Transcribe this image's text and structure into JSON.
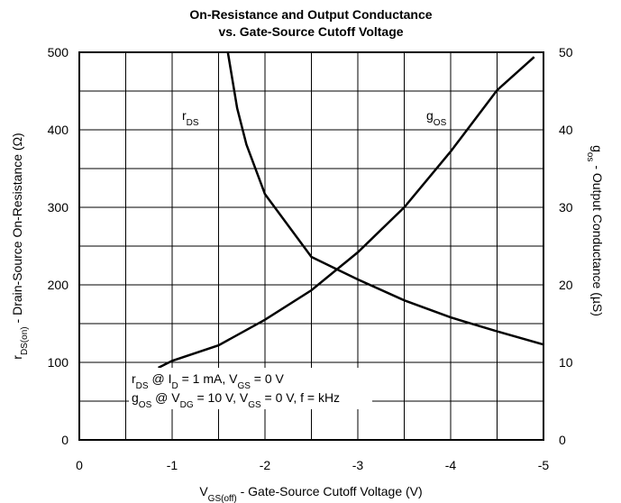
{
  "chart_data": {
    "type": "line",
    "title": [
      "On-Resistance and Output Conductance",
      "vs. Gate-Source Cutoff Voltage"
    ],
    "x_label": [
      "V",
      "GS(off)",
      " - Gate-Source Cutoff Voltage (V)"
    ],
    "y_label": [
      "r",
      "DS(on)",
      " - Drain-Source On-Resistance (Ω)"
    ],
    "y2_label": [
      "g",
      "os",
      " - Output Conductance (µS)"
    ],
    "xlim": [
      0,
      -5
    ],
    "xticks": [
      0,
      -1,
      -2,
      -3,
      -4,
      -5
    ],
    "ylim": [
      0,
      500
    ],
    "yticks": [
      0,
      100,
      200,
      300,
      400,
      500
    ],
    "y2lim": [
      0,
      50
    ],
    "y2ticks": [
      0,
      10,
      20,
      30,
      40,
      50
    ],
    "grid": true,
    "minor_grid": true,
    "series": [
      {
        "name": [
          "r",
          "DS"
        ],
        "color": "#000000",
        "axis": "y",
        "x": [
          -1.6,
          -1.7,
          -1.8,
          -2.0,
          -2.5,
          -3.0,
          -3.5,
          -4.0,
          -4.5,
          -5.0
        ],
        "values": [
          500,
          428,
          381,
          317,
          236,
          207,
          180,
          158,
          140,
          123
        ]
      },
      {
        "name": [
          "g",
          "OS"
        ],
        "color": "#000000",
        "axis": "y2",
        "x": [
          -0.85,
          -1.0,
          -1.5,
          -2.0,
          -2.5,
          -3.0,
          -3.5,
          -4.0,
          -4.5,
          -4.9
        ],
        "values": [
          9.3,
          10.2,
          12.2,
          15.5,
          19.3,
          24.2,
          30.0,
          37.2,
          45.1,
          49.4
        ]
      }
    ],
    "annotations": [
      [
        "r",
        "DS",
        " @ I",
        "D",
        " = 1 mA, V",
        "GS",
        " = 0 V"
      ],
      [
        "g",
        "OS",
        " @ V",
        "DG",
        " = 10 V, V",
        "GS",
        " = 0 V, f = kHz"
      ]
    ]
  }
}
